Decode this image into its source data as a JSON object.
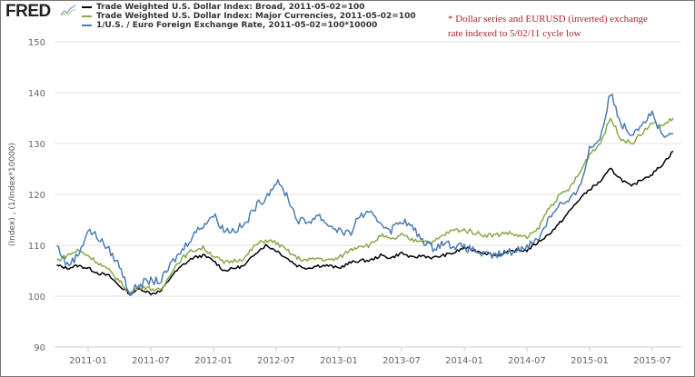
{
  "logo": "FRED",
  "legend": [
    {
      "label": "Trade Weighted U.S. Dollar Index: Broad, 2011-05-02=100",
      "color": "#000000"
    },
    {
      "label": "Trade Weighted U.S. Dollar Index: Major Currencies, 2011-05-02=100",
      "color": "#8aa84a"
    },
    {
      "label": "1/U.S. / Euro Foreign Exchange Rate, 2011-05-02=100*10000",
      "color": "#4b7cb4"
    }
  ],
  "note": "* Dollar series and EURUSD (inverted) exchange rate indexed to 5/02/11 cycle low",
  "chart_data": {
    "type": "line",
    "title": "",
    "xlabel": "",
    "ylabel": "(Index) , (1/Index*10000)",
    "ylim": [
      90,
      150
    ],
    "yticks": [
      "90",
      "100",
      "110",
      "120",
      "130",
      "140",
      "150"
    ],
    "xticks": [
      "2011-01",
      "2011-07",
      "2012-01",
      "2012-07",
      "2013-01",
      "2013-07",
      "2014-01",
      "2014-07",
      "2015-01",
      "2015-07"
    ],
    "grid": true,
    "legend_position": "top-left",
    "x_start": "2010-10",
    "x_frequency": "monthly",
    "series": [
      {
        "name": "Trade Weighted U.S. Dollar Index: Broad, 2011-05-02=100",
        "color": "#000000",
        "values": [
          106,
          105.5,
          106,
          105.5,
          104.5,
          104,
          102,
          100.5,
          101.5,
          100.5,
          101,
          104,
          106,
          107.5,
          108,
          107,
          105,
          105.5,
          106,
          108.5,
          110,
          109,
          107.5,
          106,
          105.5,
          106,
          106,
          105.5,
          106.5,
          107,
          107,
          108,
          107.5,
          108.5,
          107.5,
          108,
          107.5,
          108,
          108.5,
          109.5,
          109,
          108.5,
          108,
          108.5,
          109,
          109,
          110.5,
          112,
          114,
          116.5,
          119,
          121,
          122.5,
          125,
          123,
          121.5,
          123,
          124,
          126,
          128.5
        ]
      },
      {
        "name": "Trade Weighted U.S. Dollar Index: Major Currencies, 2011-05-02=100",
        "color": "#8aa84a",
        "values": [
          107,
          108,
          109,
          108,
          106.5,
          105,
          103,
          100.5,
          102,
          101.5,
          101,
          105,
          107.5,
          109,
          109.5,
          108,
          106.5,
          107,
          107.5,
          110,
          111,
          110.5,
          109,
          107.5,
          107,
          107.5,
          107,
          107.5,
          109,
          110,
          110,
          112,
          111,
          112,
          111,
          111,
          110.5,
          112,
          113,
          113,
          112.5,
          112,
          112,
          112.5,
          112,
          111.5,
          113,
          117,
          119.5,
          121,
          124,
          128,
          130,
          135,
          131,
          130,
          132,
          134,
          133.5,
          135
        ]
      },
      {
        "name": "1/U.S. / Euro Foreign Exchange Rate, 2011-05-02=100*10000",
        "color": "#4b7cb4",
        "values": [
          110,
          106,
          108,
          113,
          111.5,
          109,
          106,
          100.5,
          102.5,
          103,
          103,
          106.5,
          109,
          112,
          114,
          116,
          113,
          113,
          114,
          117.5,
          119.5,
          122.5,
          120,
          115,
          114.5,
          116,
          114,
          113,
          112,
          116,
          116,
          114.5,
          113,
          115,
          113.5,
          111,
          109.5,
          110.5,
          110,
          109.5,
          109,
          108,
          108,
          108.5,
          109,
          110,
          111,
          115,
          118,
          118.5,
          121,
          129,
          131,
          140,
          134,
          132,
          134,
          136,
          131,
          132
        ]
      }
    ]
  }
}
